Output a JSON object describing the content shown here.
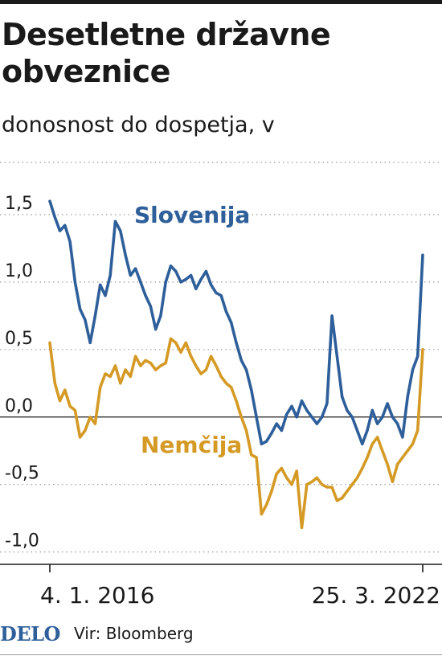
{
  "header": {
    "title": "Desetletne državne obveznice",
    "subtitle": "donosnost do dospetja, v"
  },
  "footer": {
    "logo": "DELO",
    "source": "Vir: Bloomberg"
  },
  "chart_data": {
    "type": "line",
    "title": "Desetletne državne obveznice",
    "subtitle": "donosnost do dospetja, v",
    "xlabel": "",
    "ylabel": "",
    "x_start_label": "4. 1. 2016",
    "x_end_label": "25. 3. 2022",
    "x_ticks": [
      "4. 1. 2016",
      "25. 3. 2022"
    ],
    "ylim": [
      -1.05,
      1.75
    ],
    "yticks": [
      {
        "value": 1.5,
        "label": "1,5"
      },
      {
        "value": 1.0,
        "label": "1,0"
      },
      {
        "value": 0.5,
        "label": "0,5"
      },
      {
        "value": 0.0,
        "label": "0,0"
      },
      {
        "value": -0.5,
        "label": "-0,5"
      },
      {
        "value": -1.0,
        "label": "-1,0"
      }
    ],
    "grid": "horizontal-dotted",
    "x": [
      "2016-01",
      "2016-02",
      "2016-03",
      "2016-04",
      "2016-05",
      "2016-06",
      "2016-07",
      "2016-08",
      "2016-09",
      "2016-10",
      "2016-11",
      "2016-12",
      "2017-01",
      "2017-02",
      "2017-03",
      "2017-04",
      "2017-05",
      "2017-06",
      "2017-07",
      "2017-08",
      "2017-09",
      "2017-10",
      "2017-11",
      "2017-12",
      "2018-01",
      "2018-02",
      "2018-03",
      "2018-04",
      "2018-05",
      "2018-06",
      "2018-07",
      "2018-08",
      "2018-09",
      "2018-10",
      "2018-11",
      "2018-12",
      "2019-01",
      "2019-02",
      "2019-03",
      "2019-04",
      "2019-05",
      "2019-06",
      "2019-07",
      "2019-08",
      "2019-09",
      "2019-10",
      "2019-11",
      "2019-12",
      "2020-01",
      "2020-02",
      "2020-03",
      "2020-04",
      "2020-05",
      "2020-06",
      "2020-07",
      "2020-08",
      "2020-09",
      "2020-10",
      "2020-11",
      "2020-12",
      "2021-01",
      "2021-02",
      "2021-03",
      "2021-04",
      "2021-05",
      "2021-06",
      "2021-07",
      "2021-08",
      "2021-09",
      "2021-10",
      "2021-11",
      "2021-12",
      "2022-01",
      "2022-02",
      "2022-03"
    ],
    "series": [
      {
        "name": "Slovenija",
        "color": "#2e5f9a",
        "values": [
          1.6,
          1.48,
          1.38,
          1.42,
          1.3,
          1.0,
          0.8,
          0.72,
          0.55,
          0.75,
          0.98,
          0.9,
          1.05,
          1.45,
          1.38,
          1.2,
          1.05,
          1.1,
          1.0,
          0.9,
          0.82,
          0.65,
          0.75,
          1.0,
          1.12,
          1.08,
          1.0,
          1.02,
          1.05,
          0.95,
          1.02,
          1.08,
          0.98,
          0.92,
          0.9,
          0.78,
          0.7,
          0.55,
          0.42,
          0.35,
          0.2,
          0.0,
          -0.2,
          -0.18,
          -0.12,
          -0.05,
          -0.1,
          0.02,
          0.08,
          0.0,
          0.12,
          0.05,
          0.0,
          -0.05,
          0.0,
          0.1,
          0.75,
          0.45,
          0.15,
          0.05,
          0.0,
          -0.1,
          -0.2,
          -0.1,
          0.05,
          -0.05,
          0.0,
          0.1,
          0.0,
          -0.05,
          -0.15,
          0.15,
          0.35,
          0.45,
          1.2
        ]
      },
      {
        "name": "Nemčija",
        "color": "#d59a25",
        "values": [
          0.55,
          0.25,
          0.12,
          0.2,
          0.08,
          0.05,
          -0.15,
          -0.1,
          0.0,
          -0.05,
          0.22,
          0.32,
          0.3,
          0.38,
          0.25,
          0.35,
          0.3,
          0.45,
          0.38,
          0.42,
          0.4,
          0.35,
          0.38,
          0.4,
          0.58,
          0.55,
          0.48,
          0.55,
          0.45,
          0.38,
          0.32,
          0.35,
          0.45,
          0.38,
          0.3,
          0.25,
          0.22,
          0.12,
          0.0,
          -0.1,
          -0.28,
          -0.3,
          -0.72,
          -0.65,
          -0.55,
          -0.42,
          -0.38,
          -0.45,
          -0.5,
          -0.4,
          -0.82,
          -0.5,
          -0.48,
          -0.45,
          -0.5,
          -0.52,
          -0.52,
          -0.62,
          -0.6,
          -0.55,
          -0.5,
          -0.45,
          -0.38,
          -0.3,
          -0.2,
          -0.15,
          -0.25,
          -0.35,
          -0.48,
          -0.35,
          -0.3,
          -0.25,
          -0.2,
          -0.1,
          0.5
        ]
      }
    ],
    "annotations": [
      {
        "text": "Slovenija",
        "series": "Slovenija"
      },
      {
        "text": "Nemčija",
        "series": "Nemčija"
      }
    ]
  }
}
